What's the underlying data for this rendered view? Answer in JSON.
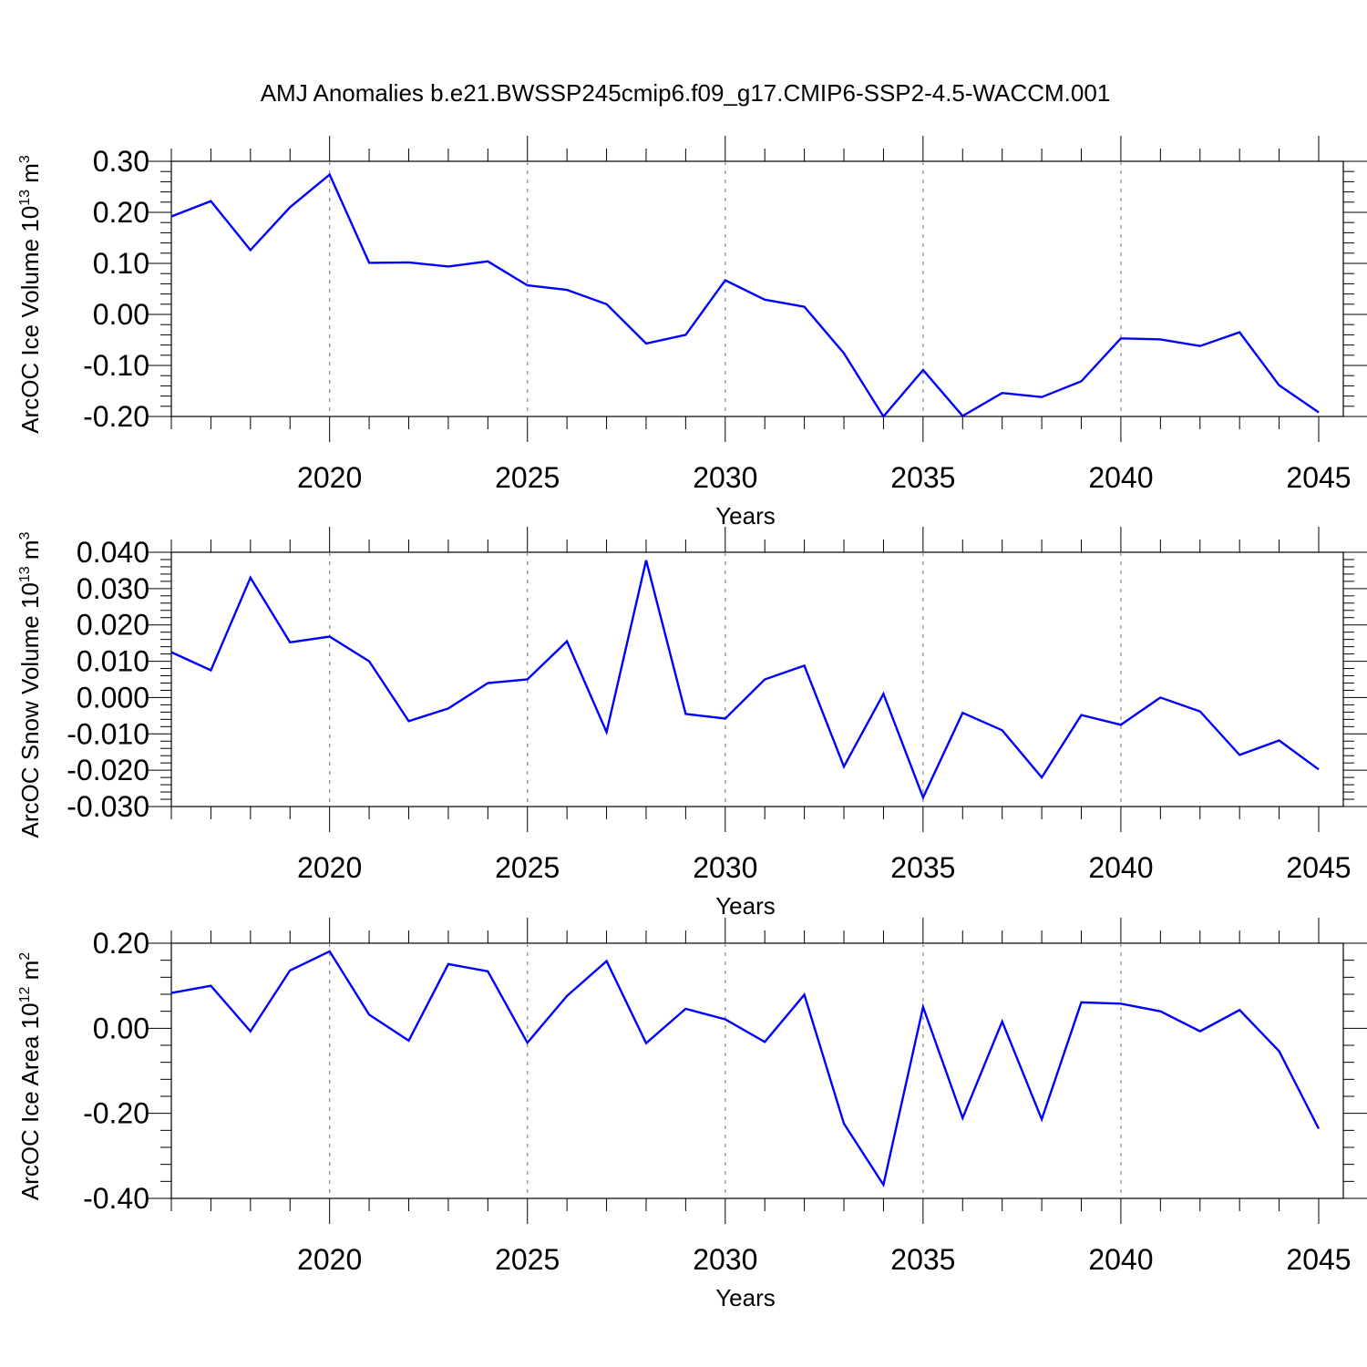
{
  "title": "AMJ Anomalies b.e21.BWSSP245cmip6.f09_g17.CMIP6-SSP2-4.5-WACCM.001",
  "colors": {
    "line": "#0000ff",
    "grid": "#888888",
    "axes": "#000000"
  },
  "chart_data": [
    {
      "type": "line",
      "ylabel": "ArcOC Ice Volume 10",
      "ylabel_exp": "13",
      "ylabel_unit": " m",
      "ylabel_unit_exp": "3",
      "xlabel": "Years",
      "xlim": [
        2016,
        2045
      ],
      "ylim": [
        -0.2,
        0.3
      ],
      "yticks": [
        -0.2,
        -0.1,
        0.0,
        0.1,
        0.2,
        0.3
      ],
      "ytick_labels": [
        "-0.20",
        "-0.10",
        "0.00",
        "0.10",
        "0.20",
        "0.30"
      ],
      "xticks": [
        2020,
        2025,
        2030,
        2035,
        2040,
        2045
      ],
      "xtick_labels": [
        "2020",
        "2025",
        "2030",
        "2035",
        "2040",
        "2045"
      ],
      "x": [
        2016,
        2017,
        2018,
        2019,
        2020,
        2021,
        2022,
        2023,
        2024,
        2025,
        2026,
        2027,
        2028,
        2029,
        2030,
        2031,
        2032,
        2033,
        2034,
        2035,
        2036,
        2037,
        2038,
        2039,
        2040,
        2041,
        2042,
        2043,
        2044,
        2045
      ],
      "values": [
        0.192,
        0.222,
        0.126,
        0.21,
        0.274,
        0.101,
        0.102,
        0.094,
        0.104,
        0.057,
        0.048,
        0.02,
        -0.057,
        -0.04,
        0.067,
        0.029,
        0.015,
        -0.076,
        -0.2,
        -0.109,
        -0.199,
        -0.154,
        -0.162,
        -0.131,
        -0.047,
        -0.049,
        -0.062,
        -0.035,
        -0.139,
        -0.192
      ]
    },
    {
      "type": "line",
      "ylabel": "ArcOC Snow Volume 10",
      "ylabel_exp": "13",
      "ylabel_unit": " m",
      "ylabel_unit_exp": "3",
      "xlabel": "Years",
      "xlim": [
        2016,
        2045
      ],
      "ylim": [
        -0.03,
        0.04
      ],
      "yticks": [
        -0.03,
        -0.02,
        -0.01,
        0.0,
        0.01,
        0.02,
        0.03,
        0.04
      ],
      "ytick_labels": [
        "-0.030",
        "-0.020",
        "-0.010",
        "0.000",
        "0.010",
        "0.020",
        "0.030",
        "0.040"
      ],
      "xticks": [
        2020,
        2025,
        2030,
        2035,
        2040,
        2045
      ],
      "xtick_labels": [
        "2020",
        "2025",
        "2030",
        "2035",
        "2040",
        "2045"
      ],
      "x": [
        2016,
        2017,
        2018,
        2019,
        2020,
        2021,
        2022,
        2023,
        2024,
        2025,
        2026,
        2027,
        2028,
        2029,
        2030,
        2031,
        2032,
        2033,
        2034,
        2035,
        2036,
        2037,
        2038,
        2039,
        2040,
        2041,
        2042,
        2043,
        2044,
        2045
      ],
      "values": [
        0.0125,
        0.0075,
        0.033,
        0.0152,
        0.0168,
        0.01,
        -0.0065,
        -0.003,
        0.004,
        0.005,
        0.0155,
        -0.0095,
        0.0378,
        -0.0045,
        -0.0058,
        0.005,
        0.0088,
        -0.019,
        0.001,
        -0.0275,
        -0.0042,
        -0.009,
        -0.022,
        -0.0048,
        -0.0075,
        0.0,
        -0.0038,
        -0.0158,
        -0.0118,
        -0.0198
      ]
    },
    {
      "type": "line",
      "ylabel": "ArcOC Ice Area 10",
      "ylabel_exp": "12",
      "ylabel_unit": " m",
      "ylabel_unit_exp": "2",
      "xlabel": "Years",
      "xlim": [
        2016,
        2045
      ],
      "ylim": [
        -0.4,
        0.2
      ],
      "yticks": [
        -0.4,
        -0.2,
        0.0,
        0.2
      ],
      "ytick_labels": [
        "-0.40",
        "-0.20",
        "0.00",
        "0.20"
      ],
      "xticks": [
        2020,
        2025,
        2030,
        2035,
        2040,
        2045
      ],
      "xtick_labels": [
        "2020",
        "2025",
        "2030",
        "2035",
        "2040",
        "2045"
      ],
      "x": [
        2016,
        2017,
        2018,
        2019,
        2020,
        2021,
        2022,
        2023,
        2024,
        2025,
        2026,
        2027,
        2028,
        2029,
        2030,
        2031,
        2032,
        2033,
        2034,
        2035,
        2036,
        2037,
        2038,
        2039,
        2040,
        2041,
        2042,
        2043,
        2044,
        2045
      ],
      "values": [
        0.083,
        0.1,
        -0.007,
        0.136,
        0.181,
        0.032,
        -0.029,
        0.151,
        0.134,
        -0.034,
        0.076,
        0.158,
        -0.035,
        0.046,
        0.021,
        -0.032,
        0.079,
        -0.224,
        -0.368,
        0.05,
        -0.211,
        0.016,
        -0.214,
        0.061,
        0.058,
        0.04,
        -0.007,
        0.043,
        -0.054,
        -0.236
      ]
    }
  ]
}
